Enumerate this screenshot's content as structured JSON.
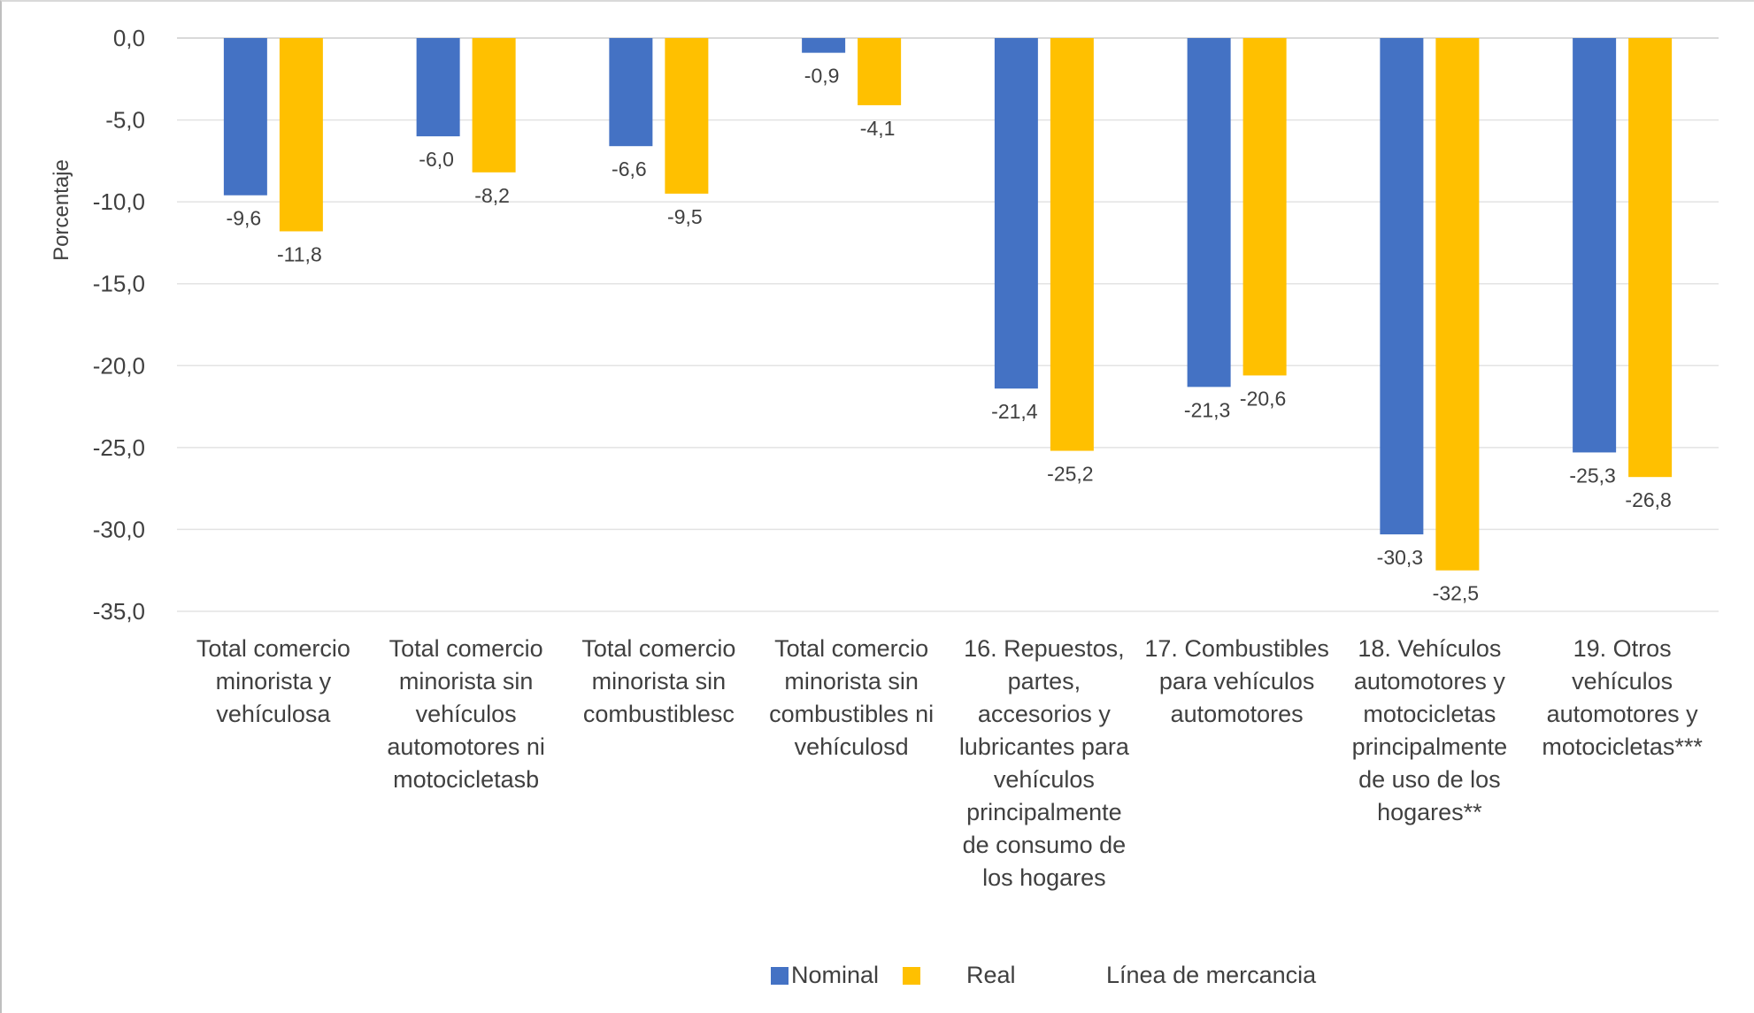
{
  "chart_data": {
    "type": "bar",
    "ylabel": "Porcentaje",
    "ylim": [
      -35,
      0
    ],
    "yticks": [
      "0,0",
      "-5,0",
      "-10,0",
      "-15,0",
      "-20,0",
      "-25,0",
      "-30,0",
      "-35,0"
    ],
    "ytick_values": [
      0,
      -5,
      -10,
      -15,
      -20,
      -25,
      -30,
      -35
    ],
    "grid": true,
    "legend_position": "bottom",
    "categories": [
      [
        "Total comercio",
        "minorista y",
        "vehículosa"
      ],
      [
        "Total comercio",
        "minorista sin",
        "vehículos",
        "automotores ni",
        "motocicletasb"
      ],
      [
        "Total comercio",
        "minorista sin",
        "combustiblesc"
      ],
      [
        "Total comercio",
        "minorista sin",
        "combustibles ni",
        "vehículosd"
      ],
      [
        "16. Repuestos,",
        "partes,",
        "accesorios y",
        "lubricantes para",
        "vehículos",
        "principalmente",
        "de consumo de",
        "los hogares"
      ],
      [
        "17. Combustibles",
        "para vehículos",
        "automotores"
      ],
      [
        "18. Vehículos",
        "automotores y",
        "motocicletas",
        "principalmente",
        "de uso de los",
        "hogares**"
      ],
      [
        "19. Otros",
        "vehículos",
        "automotores y",
        "motocicletas***"
      ]
    ],
    "series": [
      {
        "name": "Nominal",
        "color": "#4472C4",
        "values": [
          -9.6,
          -6.0,
          -6.6,
          -0.9,
          -21.4,
          -21.3,
          -30.3,
          -25.3
        ],
        "labels": [
          "-9,6",
          "-6,0",
          "-6,6",
          "-0,9",
          "-21,4",
          "-21,3",
          "-30,3",
          "-25,3"
        ]
      },
      {
        "name": "Real",
        "color": "#FFC000",
        "values": [
          -11.8,
          -8.2,
          -9.5,
          -4.1,
          -25.2,
          -20.6,
          -32.5,
          -26.8
        ],
        "labels": [
          "-11,8",
          "-8,2",
          "-9,5",
          "-4,1",
          "-25,2",
          "-20,6",
          "-32,5",
          "-26,8"
        ]
      }
    ],
    "legend": {
      "items": [
        "Nominal",
        "Real"
      ],
      "extra_text": "Línea de mercancia"
    }
  }
}
